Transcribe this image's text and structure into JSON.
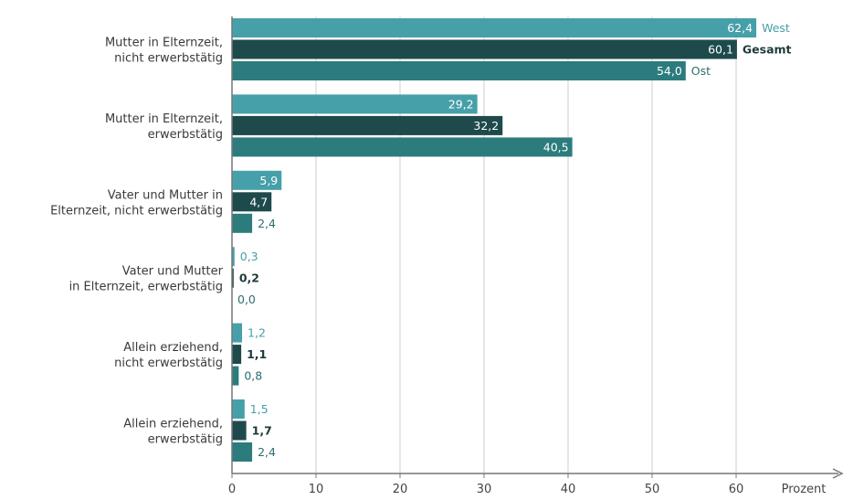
{
  "chart_data": {
    "type": "bar",
    "orientation": "horizontal",
    "categories": [
      [
        "Mutter in Elternzeit,",
        "nicht erwerbstätig"
      ],
      [
        "Mutter in Elternzeit,",
        "erwerbstätig"
      ],
      [
        "Vater und Mutter in",
        "Elternzeit, nicht erwerbstätig"
      ],
      [
        "Vater und Mutter",
        "in Elternzeit, erwerbstätig"
      ],
      [
        "Allein erziehend,",
        "nicht erwerbstätig"
      ],
      [
        "Allein erziehend,",
        "erwerbstätig"
      ]
    ],
    "series": [
      {
        "name": "West",
        "color": "#46a0a9",
        "values": [
          62.4,
          29.2,
          5.9,
          0.3,
          1.2,
          1.5
        ],
        "labels": [
          "62,4",
          "29,2",
          "5,9",
          "0,3",
          "1,2",
          "1,5"
        ],
        "label_color": "#46a0a9"
      },
      {
        "name": "Gesamt",
        "color": "#1e4a4c",
        "values": [
          60.1,
          32.2,
          4.7,
          0.2,
          1.1,
          1.7
        ],
        "labels": [
          "60,1",
          "32,2",
          "4,7",
          "0,2",
          "1,1",
          "1,7"
        ],
        "label_color": "#1e3a3b"
      },
      {
        "name": "Ost",
        "color": "#2c7c7d",
        "values": [
          54.0,
          40.5,
          2.4,
          0.0,
          0.8,
          2.4
        ],
        "labels": [
          "54,0",
          "40,5",
          "2,4",
          "0,0",
          "0,8",
          "2,4"
        ],
        "label_color": "#2c6e70"
      }
    ],
    "x_ticks": [
      0,
      10,
      20,
      30,
      40,
      50,
      60
    ],
    "xlim": [
      0,
      72
    ],
    "xlabel": "Prozent",
    "grid": true,
    "legend_placement": "right of the first group of bars"
  }
}
